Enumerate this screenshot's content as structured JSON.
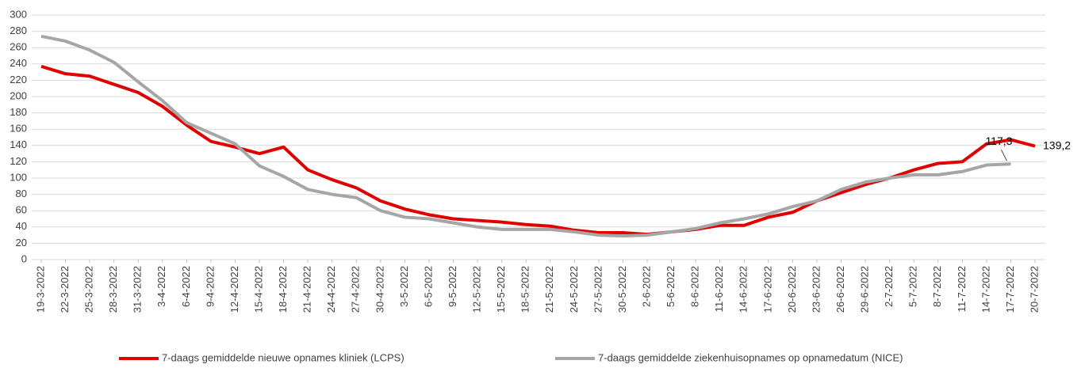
{
  "chart_data": {
    "type": "line",
    "categories": [
      "19-3-2022",
      "22-3-2022",
      "25-3-2022",
      "28-3-2022",
      "31-3-2022",
      "3-4-2022",
      "6-4-2022",
      "9-4-2022",
      "12-4-2022",
      "15-4-2022",
      "18-4-2022",
      "21-4-2022",
      "24-4-2022",
      "27-4-2022",
      "30-4-2022",
      "3-5-2022",
      "6-5-2022",
      "9-5-2022",
      "12-5-2022",
      "15-5-2022",
      "18-5-2022",
      "21-5-2022",
      "24-5-2022",
      "27-5-2022",
      "30-5-2022",
      "2-6-2022",
      "5-6-2022",
      "8-6-2022",
      "11-6-2022",
      "14-6-2022",
      "17-6-2022",
      "20-6-2022",
      "23-6-2022",
      "26-6-2022",
      "29-6-2022",
      "2-7-2022",
      "5-7-2022",
      "8-7-2022",
      "11-7-2022",
      "14-7-2022",
      "17-7-2022",
      "20-7-2022"
    ],
    "series": [
      {
        "name": "7-daags gemiddelde nieuwe opnames kliniek (LCPS)",
        "color": "#e00000",
        "values": [
          237,
          228,
          225,
          215,
          205,
          188,
          165,
          145,
          138,
          130,
          138,
          110,
          98,
          88,
          72,
          62,
          55,
          50,
          48,
          46,
          43,
          41,
          36,
          33,
          33,
          31,
          34,
          37,
          42,
          42,
          52,
          58,
          72,
          82,
          92,
          100,
          110,
          118,
          120,
          142,
          147,
          139.2
        ],
        "value_labels": [
          null,
          null,
          null,
          null,
          null,
          null,
          null,
          null,
          null,
          null,
          null,
          null,
          null,
          null,
          null,
          null,
          null,
          null,
          null,
          null,
          null,
          null,
          null,
          null,
          null,
          null,
          null,
          null,
          null,
          null,
          null,
          null,
          null,
          null,
          null,
          null,
          null,
          null,
          null,
          null,
          null,
          "139,2"
        ]
      },
      {
        "name": "7-daags gemiddelde ziekenhuisopnames op opnamedatum (NICE)",
        "color": "#a6a6a6",
        "values": [
          274,
          268,
          257,
          242,
          218,
          195,
          168,
          155,
          142,
          115,
          102,
          86,
          80,
          76,
          60,
          52,
          50,
          45,
          40,
          37,
          37,
          37,
          34,
          30,
          29,
          30,
          34,
          38,
          45,
          50,
          56,
          65,
          72,
          86,
          95,
          100,
          104,
          104,
          108,
          116,
          117.3,
          null
        ],
        "value_labels": [
          null,
          null,
          null,
          null,
          null,
          null,
          null,
          null,
          null,
          null,
          null,
          null,
          null,
          null,
          null,
          null,
          null,
          null,
          null,
          null,
          null,
          null,
          null,
          null,
          null,
          null,
          null,
          null,
          null,
          null,
          null,
          null,
          null,
          null,
          null,
          null,
          null,
          null,
          null,
          null,
          "117,3",
          null
        ]
      }
    ],
    "ylim": [
      0,
      300
    ],
    "yticks": [
      0,
      20,
      40,
      60,
      80,
      100,
      120,
      140,
      160,
      180,
      200,
      220,
      240,
      260,
      280,
      300
    ],
    "grid": true
  }
}
